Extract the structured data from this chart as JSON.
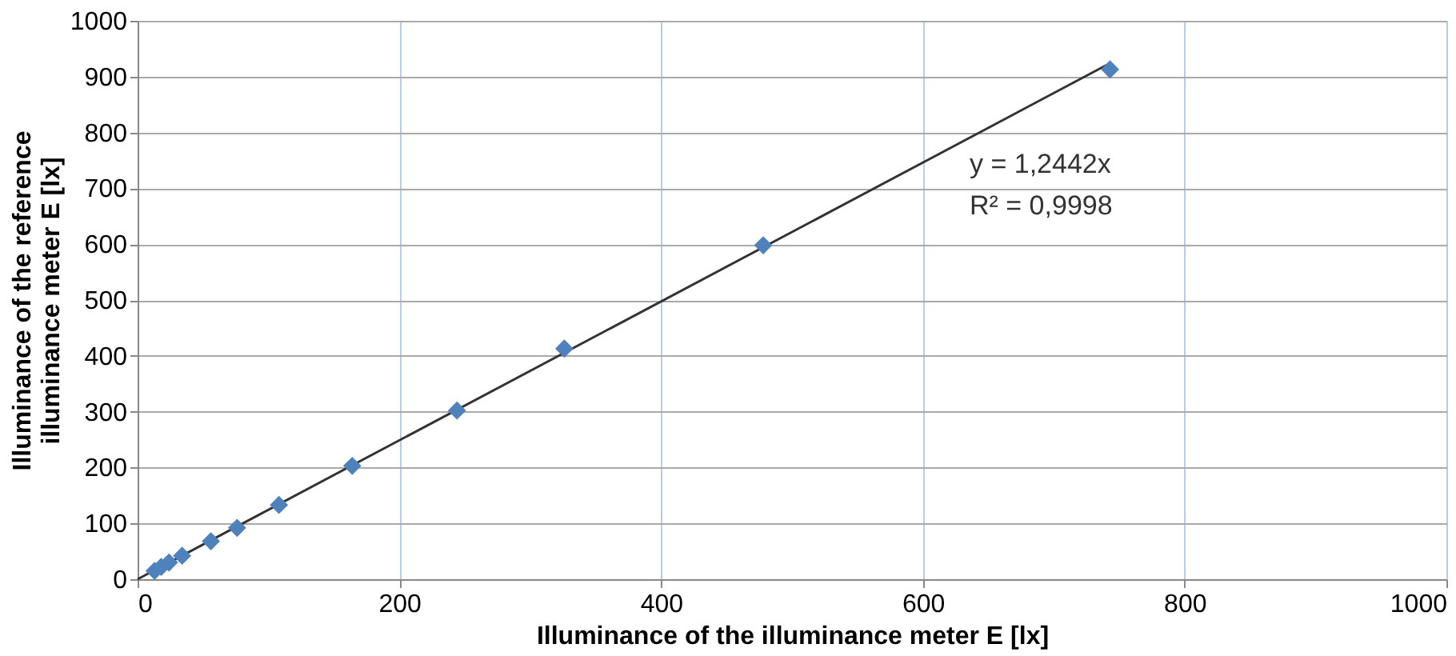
{
  "chart_data": {
    "type": "scatter",
    "xlabel": "Illuminance of the illuminance meter E [lx]",
    "ylabel": "Illuminance of the reference illuminance meter E [lx]",
    "xlim": [
      0,
      1000
    ],
    "xticks": [
      0,
      200,
      400,
      600,
      800,
      1000
    ],
    "ylim": [
      0,
      1000
    ],
    "yticks": [
      0,
      100,
      200,
      300,
      400,
      500,
      600,
      700,
      800,
      900,
      1000
    ],
    "grid": true,
    "legend": false,
    "marker": "diamond",
    "series": [
      {
        "color": "#4f81bd",
        "x": [
          13,
          18,
          24,
          34,
          56,
          76,
          108,
          164,
          244,
          326,
          478,
          743
        ],
        "values": [
          15,
          22,
          30,
          42,
          68,
          92,
          133,
          203,
          302,
          413,
          598,
          913
        ]
      },
      {
        "type": "line",
        "marker": "none",
        "color": "#333333",
        "x": [
          0,
          743
        ],
        "values": [
          0,
          924
        ]
      }
    ],
    "annotations": [
      "y = 1,2442x",
      "R² = 0,9998"
    ]
  }
}
